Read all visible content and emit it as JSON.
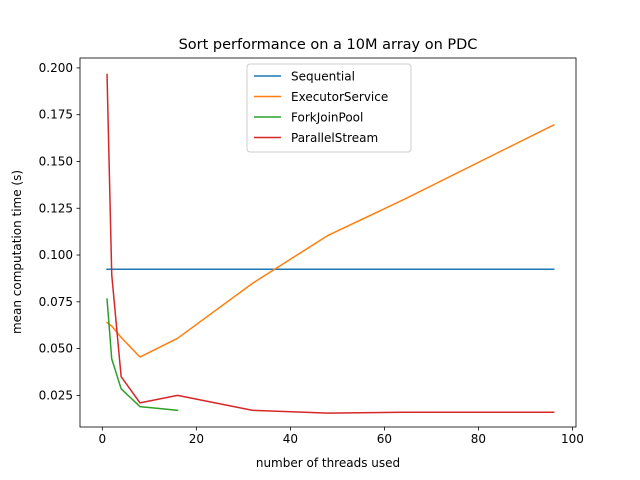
{
  "chart_data": {
    "type": "line",
    "title": "Sort performance on a 10M array on PDC",
    "xlabel": "number of threads used",
    "ylabel": "mean computation time (s)",
    "xlim": [
      -4.75,
      100.75
    ],
    "ylim": [
      0.0081,
      0.2053
    ],
    "xticks": [
      0,
      20,
      40,
      60,
      80,
      100
    ],
    "xtick_labels": [
      "0",
      "20",
      "40",
      "60",
      "80",
      "100"
    ],
    "yticks": [
      0.025,
      0.05,
      0.075,
      0.1,
      0.125,
      0.15,
      0.175,
      0.2
    ],
    "ytick_labels": [
      "0.025",
      "0.050",
      "0.075",
      "0.100",
      "0.125",
      "0.150",
      "0.175",
      "0.200"
    ],
    "grid": false,
    "legend_position": "top-center",
    "series": [
      {
        "name": "Sequential",
        "color": "#1f77b4",
        "x": [
          1,
          2,
          4,
          8,
          16,
          32,
          48,
          64,
          96
        ],
        "y": [
          0.0924,
          0.0924,
          0.0924,
          0.0924,
          0.0924,
          0.0924,
          0.0924,
          0.0924,
          0.0924
        ]
      },
      {
        "name": "ExecutorService",
        "color": "#ff7f0e",
        "x": [
          1,
          2,
          4,
          8,
          16,
          32,
          48,
          64,
          96
        ],
        "y": [
          0.064,
          0.062,
          0.056,
          0.0455,
          0.0555,
          0.085,
          0.1105,
          0.1295,
          0.1695
        ]
      },
      {
        "name": "ForkJoinPool",
        "color": "#2ca02c",
        "x": [
          1,
          2,
          4,
          8,
          16
        ],
        "y": [
          0.0765,
          0.0445,
          0.0285,
          0.019,
          0.017
        ]
      },
      {
        "name": "ParallelStream",
        "color": "#d62728",
        "x": [
          1,
          2,
          4,
          8,
          16,
          32,
          48,
          64,
          96
        ],
        "y": [
          0.1965,
          0.0895,
          0.035,
          0.021,
          0.025,
          0.017,
          0.0155,
          0.016,
          0.016
        ]
      }
    ]
  }
}
